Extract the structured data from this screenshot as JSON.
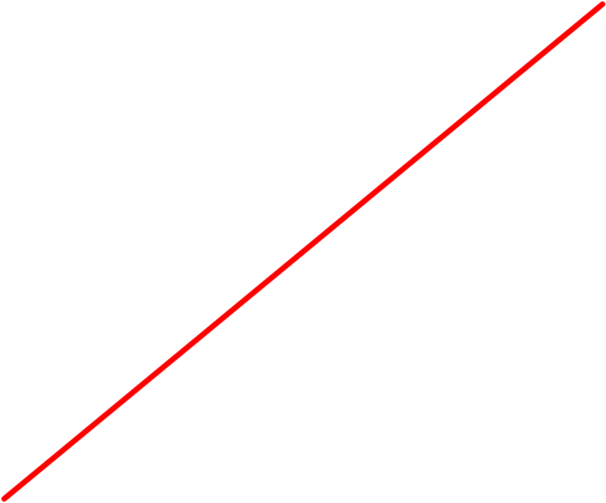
{
  "background_color": "#ffffff",
  "line_color": "#ff0000"
}
